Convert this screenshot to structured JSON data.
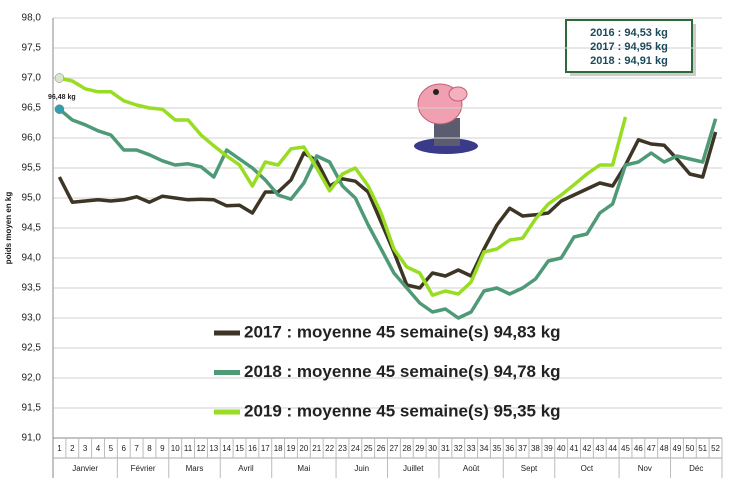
{
  "chart_data": {
    "type": "line",
    "y_label": "poids moyen en kg",
    "categories": [
      "1",
      "2",
      "3",
      "4",
      "5",
      "6",
      "7",
      "8",
      "9",
      "10",
      "11",
      "12",
      "13",
      "14",
      "15",
      "16",
      "17",
      "18",
      "19",
      "20",
      "21",
      "22",
      "23",
      "24",
      "25",
      "26",
      "27",
      "28",
      "29",
      "30",
      "31",
      "32",
      "33",
      "34",
      "35",
      "36",
      "37",
      "38",
      "39",
      "40",
      "41",
      "42",
      "43",
      "44",
      "45",
      "46",
      "47",
      "48",
      "49",
      "50",
      "51",
      "52"
    ],
    "months": [
      "Janvier",
      "Février",
      "Mars",
      "Avril",
      "Mai",
      "Juin",
      "Juillet",
      "Août",
      "Sept",
      "Oct",
      "Nov",
      "Déc"
    ],
    "ylim": [
      91,
      98
    ],
    "yticks": [
      {
        "value": 91,
        "label": "91,0"
      },
      {
        "value": 91.5,
        "label": "91,5"
      },
      {
        "value": 92,
        "label": "92,0"
      },
      {
        "value": 92.5,
        "label": "92,5"
      },
      {
        "value": 93,
        "label": "93,0"
      },
      {
        "value": 93.5,
        "label": "93,5"
      },
      {
        "value": 94,
        "label": "94,0"
      },
      {
        "value": 94.5,
        "label": "94,5"
      },
      {
        "value": 95,
        "label": "95,0"
      },
      {
        "value": 95.5,
        "label": "95,5"
      },
      {
        "value": 96,
        "label": "96,0"
      },
      {
        "value": 96.5,
        "label": "96,5"
      },
      {
        "value": 97,
        "label": "97,0"
      },
      {
        "value": 97.5,
        "label": "97,5"
      },
      {
        "value": 98,
        "label": "98,0"
      }
    ],
    "grid": true,
    "series": [
      {
        "name": "2017 : moyenne 45 semaine(s) 94,83 kg",
        "color": "#3d3525",
        "values": [
          95.35,
          94.93,
          94.95,
          94.97,
          94.95,
          94.97,
          95.02,
          94.93,
          95.03,
          95.0,
          94.97,
          94.98,
          94.97,
          94.87,
          94.88,
          94.75,
          95.1,
          95.1,
          95.3,
          95.75,
          95.62,
          95.2,
          95.32,
          95.28,
          95.1,
          94.6,
          94.1,
          93.55,
          93.5,
          93.75,
          93.7,
          93.8,
          93.7,
          94.15,
          94.55,
          94.83,
          94.7,
          94.72,
          94.75,
          94.95,
          95.05,
          95.15,
          95.25,
          95.2,
          95.55,
          95.97,
          95.9,
          95.88,
          95.65,
          95.4,
          95.35,
          96.1
        ]
      },
      {
        "name": "2018 : moyenne 45 semaine(s) 94,78 kg",
        "color": "#4e9a77",
        "values": [
          96.48,
          96.3,
          96.22,
          96.12,
          96.05,
          95.8,
          95.8,
          95.72,
          95.62,
          95.55,
          95.57,
          95.52,
          95.35,
          95.8,
          95.65,
          95.5,
          95.3,
          95.05,
          94.98,
          95.25,
          95.7,
          95.6,
          95.2,
          95.0,
          94.55,
          94.15,
          93.75,
          93.5,
          93.25,
          93.1,
          93.15,
          93.0,
          93.1,
          93.45,
          93.5,
          93.4,
          93.5,
          93.65,
          93.95,
          94.0,
          94.35,
          94.4,
          94.75,
          94.9,
          95.55,
          95.6,
          95.75,
          95.6,
          95.7,
          95.65,
          95.6,
          96.32
        ]
      },
      {
        "name": "2019 : moyenne 45 semaine(s) 95,35 kg",
        "color": "#99dd22",
        "values": [
          97.0,
          96.95,
          96.82,
          96.77,
          96.77,
          96.62,
          96.55,
          96.5,
          96.48,
          96.3,
          96.3,
          96.05,
          95.87,
          95.7,
          95.55,
          95.2,
          95.6,
          95.55,
          95.82,
          95.85,
          95.5,
          95.12,
          95.4,
          95.5,
          95.2,
          94.75,
          94.15,
          93.85,
          93.75,
          93.38,
          93.45,
          93.4,
          93.6,
          94.1,
          94.15,
          94.3,
          94.33,
          94.65,
          94.9,
          95.05,
          95.22,
          95.4,
          95.55,
          95.55,
          96.35,
          null,
          null,
          null,
          null,
          null,
          null,
          null
        ]
      }
    ],
    "annotations": [
      "96,48 kg"
    ],
    "info_box": [
      "2016 : 94,53 kg",
      "2017 : 94,95 kg",
      "2018 : 94,91 kg"
    ]
  }
}
